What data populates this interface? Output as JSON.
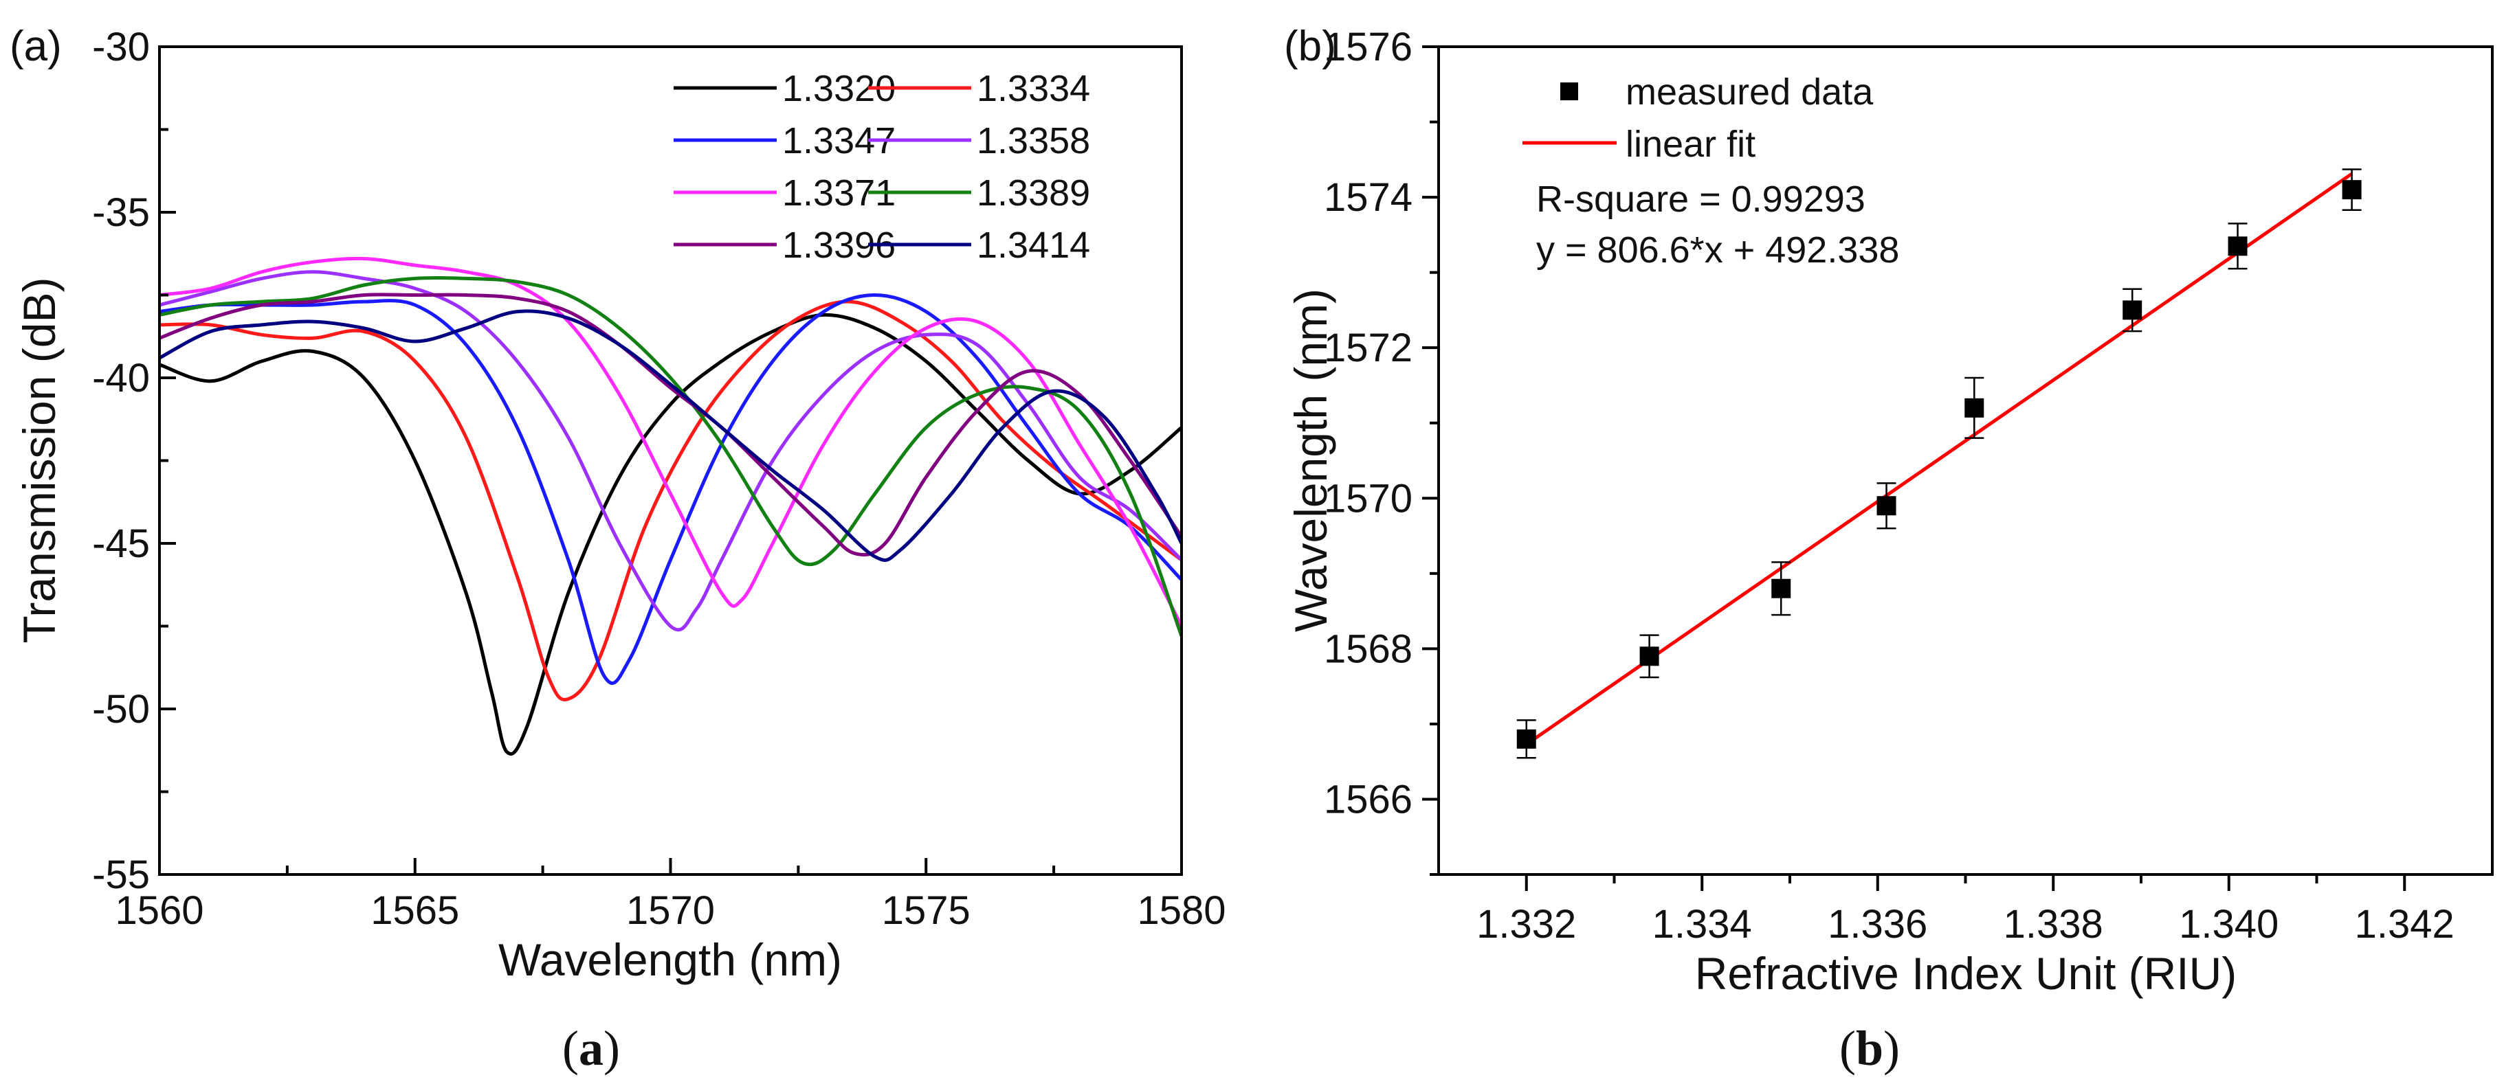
{
  "captions": {
    "a_open": "(",
    "a_letter": "a",
    "a_close": ")",
    "b_open": "(",
    "b_letter": "b",
    "b_close": ")"
  },
  "chart_data": [
    {
      "panel_label": "(a)",
      "type": "line",
      "title": "",
      "xlabel": "Wavelength (nm)",
      "ylabel": "Transmission (dB)",
      "xlim": [
        1560,
        1580
      ],
      "ylim": [
        -55,
        -30
      ],
      "xticks": [
        "1560",
        "1565",
        "1570",
        "1575",
        "1580"
      ],
      "yticks": [
        "-30",
        "-35",
        "-40",
        "-45",
        "-50",
        "-55"
      ],
      "grid": false,
      "legend_position": "top-right",
      "series": [
        {
          "name": "1.3320",
          "color": "#000000",
          "points": [
            [
              1560,
              -39.6
            ],
            [
              1561,
              -40.1
            ],
            [
              1562,
              -39.5
            ],
            [
              1563,
              -39.2
            ],
            [
              1564,
              -40.0
            ],
            [
              1565,
              -42.5
            ],
            [
              1566,
              -46.5
            ],
            [
              1566.5,
              -49.5
            ],
            [
              1566.8,
              -51.3
            ],
            [
              1567.2,
              -50.5
            ],
            [
              1568,
              -46.5
            ],
            [
              1569,
              -43.0
            ],
            [
              1570,
              -40.8
            ],
            [
              1571,
              -39.5
            ],
            [
              1572,
              -38.6
            ],
            [
              1573,
              -38.1
            ],
            [
              1574,
              -38.5
            ],
            [
              1575,
              -39.5
            ],
            [
              1576,
              -41.0
            ],
            [
              1577,
              -42.5
            ],
            [
              1578,
              -43.5
            ],
            [
              1579,
              -42.8
            ],
            [
              1580,
              -41.5
            ]
          ]
        },
        {
          "name": "1.3334",
          "color": "#ff1a1a",
          "points": [
            [
              1560,
              -38.4
            ],
            [
              1561,
              -38.4
            ],
            [
              1562,
              -38.7
            ],
            [
              1563,
              -38.8
            ],
            [
              1564,
              -38.6
            ],
            [
              1565,
              -39.5
            ],
            [
              1566,
              -41.8
            ],
            [
              1567,
              -46.0
            ],
            [
              1567.6,
              -49.0
            ],
            [
              1568,
              -49.7
            ],
            [
              1568.6,
              -48.5
            ],
            [
              1569.5,
              -44.5
            ],
            [
              1570.5,
              -41.5
            ],
            [
              1571.5,
              -39.5
            ],
            [
              1572.5,
              -38.2
            ],
            [
              1573.5,
              -37.7
            ],
            [
              1574.5,
              -38.3
            ],
            [
              1575.5,
              -39.5
            ],
            [
              1576.5,
              -41.3
            ],
            [
              1577.5,
              -42.7
            ],
            [
              1578.5,
              -43.8
            ],
            [
              1580,
              -45.5
            ]
          ]
        },
        {
          "name": "1.3347",
          "color": "#1a1aff",
          "points": [
            [
              1560,
              -38.0
            ],
            [
              1561,
              -37.8
            ],
            [
              1562,
              -37.8
            ],
            [
              1563,
              -37.8
            ],
            [
              1564,
              -37.7
            ],
            [
              1565,
              -37.8
            ],
            [
              1566,
              -39.0
            ],
            [
              1567,
              -41.5
            ],
            [
              1568,
              -45.5
            ],
            [
              1568.7,
              -49.0
            ],
            [
              1569.2,
              -48.5
            ],
            [
              1570,
              -45.5
            ],
            [
              1571,
              -42.0
            ],
            [
              1572,
              -39.5
            ],
            [
              1573,
              -38.0
            ],
            [
              1574,
              -37.5
            ],
            [
              1575,
              -38.0
            ],
            [
              1576,
              -39.4
            ],
            [
              1577,
              -41.5
            ],
            [
              1578,
              -43.5
            ],
            [
              1579,
              -44.5
            ],
            [
              1580,
              -46.1
            ]
          ]
        },
        {
          "name": "1.3358",
          "color": "#9b30ff",
          "points": [
            [
              1560,
              -37.8
            ],
            [
              1561,
              -37.4
            ],
            [
              1562,
              -37.0
            ],
            [
              1563,
              -36.8
            ],
            [
              1564,
              -37.0
            ],
            [
              1565,
              -37.3
            ],
            [
              1566,
              -38.0
            ],
            [
              1567,
              -39.5
            ],
            [
              1568,
              -41.8
            ],
            [
              1569,
              -45.0
            ],
            [
              1570,
              -47.5
            ],
            [
              1570.5,
              -47.0
            ],
            [
              1571,
              -45.5
            ],
            [
              1572,
              -42.5
            ],
            [
              1573,
              -40.5
            ],
            [
              1574,
              -39.2
            ],
            [
              1575,
              -38.7
            ],
            [
              1576,
              -39.0
            ],
            [
              1577,
              -40.8
            ],
            [
              1578,
              -43.0
            ],
            [
              1579,
              -44.0
            ],
            [
              1580,
              -45.5
            ]
          ]
        },
        {
          "name": "1.3371",
          "color": "#ff2aff",
          "points": [
            [
              1560,
              -37.5
            ],
            [
              1561,
              -37.3
            ],
            [
              1562,
              -36.8
            ],
            [
              1563,
              -36.5
            ],
            [
              1564,
              -36.4
            ],
            [
              1565,
              -36.6
            ],
            [
              1566,
              -36.8
            ],
            [
              1567,
              -37.2
            ],
            [
              1568,
              -38.3
            ],
            [
              1569,
              -40.5
            ],
            [
              1570,
              -43.5
            ],
            [
              1571,
              -46.5
            ],
            [
              1571.4,
              -46.7
            ],
            [
              1572,
              -45.0
            ],
            [
              1573,
              -42.0
            ],
            [
              1574,
              -39.8
            ],
            [
              1575,
              -38.5
            ],
            [
              1576,
              -38.3
            ],
            [
              1577,
              -39.5
            ],
            [
              1578,
              -42.0
            ],
            [
              1579,
              -44.5
            ],
            [
              1580,
              -47.5
            ]
          ]
        },
        {
          "name": "1.3389",
          "color": "#128012",
          "points": [
            [
              1560,
              -38.1
            ],
            [
              1561,
              -37.8
            ],
            [
              1562,
              -37.7
            ],
            [
              1563,
              -37.6
            ],
            [
              1564,
              -37.2
            ],
            [
              1565,
              -37.0
            ],
            [
              1566,
              -37.0
            ],
            [
              1567,
              -37.1
            ],
            [
              1568,
              -37.5
            ],
            [
              1569,
              -38.5
            ],
            [
              1570,
              -40.0
            ],
            [
              1571,
              -42.0
            ],
            [
              1572,
              -44.5
            ],
            [
              1572.6,
              -45.6
            ],
            [
              1573.2,
              -45.2
            ],
            [
              1574,
              -43.5
            ],
            [
              1575,
              -41.5
            ],
            [
              1576,
              -40.5
            ],
            [
              1577,
              -40.3
            ],
            [
              1578,
              -41.0
            ],
            [
              1579,
              -43.5
            ],
            [
              1580,
              -47.8
            ]
          ]
        },
        {
          "name": "1.3396",
          "color": "#800080",
          "points": [
            [
              1560,
              -38.8
            ],
            [
              1561,
              -38.2
            ],
            [
              1562,
              -37.8
            ],
            [
              1563,
              -37.7
            ],
            [
              1564,
              -37.5
            ],
            [
              1565,
              -37.5
            ],
            [
              1566,
              -37.5
            ],
            [
              1567,
              -37.6
            ],
            [
              1568,
              -38.0
            ],
            [
              1569,
              -39.0
            ],
            [
              1570,
              -40.3
            ],
            [
              1571,
              -41.5
            ],
            [
              1572,
              -43.0
            ],
            [
              1573,
              -44.5
            ],
            [
              1573.6,
              -45.3
            ],
            [
              1574.2,
              -45.0
            ],
            [
              1575,
              -43.0
            ],
            [
              1576,
              -41.0
            ],
            [
              1577,
              -39.8
            ],
            [
              1578,
              -40.5
            ],
            [
              1579,
              -42.5
            ],
            [
              1580,
              -44.8
            ]
          ]
        },
        {
          "name": "1.3414",
          "color": "#000080",
          "points": [
            [
              1560,
              -39.4
            ],
            [
              1561,
              -38.6
            ],
            [
              1562,
              -38.4
            ],
            [
              1563,
              -38.3
            ],
            [
              1564,
              -38.5
            ],
            [
              1565,
              -38.9
            ],
            [
              1566,
              -38.5
            ],
            [
              1567,
              -38.0
            ],
            [
              1568,
              -38.2
            ],
            [
              1569,
              -39.0
            ],
            [
              1570,
              -40.2
            ],
            [
              1571,
              -41.5
            ],
            [
              1572,
              -42.8
            ],
            [
              1573,
              -44.0
            ],
            [
              1574,
              -45.4
            ],
            [
              1574.5,
              -45.2
            ],
            [
              1575.5,
              -43.5
            ],
            [
              1576.5,
              -41.5
            ],
            [
              1577.5,
              -40.4
            ],
            [
              1578.5,
              -41.2
            ],
            [
              1579.5,
              -43.5
            ],
            [
              1580,
              -45.0
            ]
          ]
        }
      ]
    },
    {
      "panel_label": "(b)",
      "type": "scatter",
      "title": "",
      "xlabel": "Refractive Index Unit (RIU)",
      "ylabel": "Wavelength (nm)",
      "xlim": [
        1.331,
        1.343
      ],
      "ylim": [
        1565,
        1576
      ],
      "xticks": [
        "1.332",
        "1.334",
        "1.336",
        "1.338",
        "1.340",
        "1.342"
      ],
      "yticks": [
        "1576",
        "1574",
        "1572",
        "1570",
        "1568",
        "1566"
      ],
      "grid": false,
      "legend_position": "top-left",
      "legend": [
        "measured data",
        "linear fit"
      ],
      "annotations": [
        "R-square = 0.99293",
        "y = 806.6*x + 492.338"
      ],
      "series": [
        {
          "name": "measured data",
          "color": "#000000",
          "x": [
            1.332,
            1.3334,
            1.3349,
            1.3361,
            1.3371,
            1.3389,
            1.3401,
            1.3414
          ],
          "y": [
            1566.8,
            1567.9,
            1568.8,
            1569.9,
            1571.2,
            1572.5,
            1573.35,
            1574.1
          ],
          "err": [
            0.25,
            0.28,
            0.35,
            0.3,
            0.4,
            0.28,
            0.3,
            0.27
          ]
        },
        {
          "name": "linear fit",
          "color": "#ff0000",
          "slope": 806.6,
          "intercept": 492.338,
          "x_range": [
            1.332,
            1.3414
          ]
        }
      ]
    }
  ]
}
